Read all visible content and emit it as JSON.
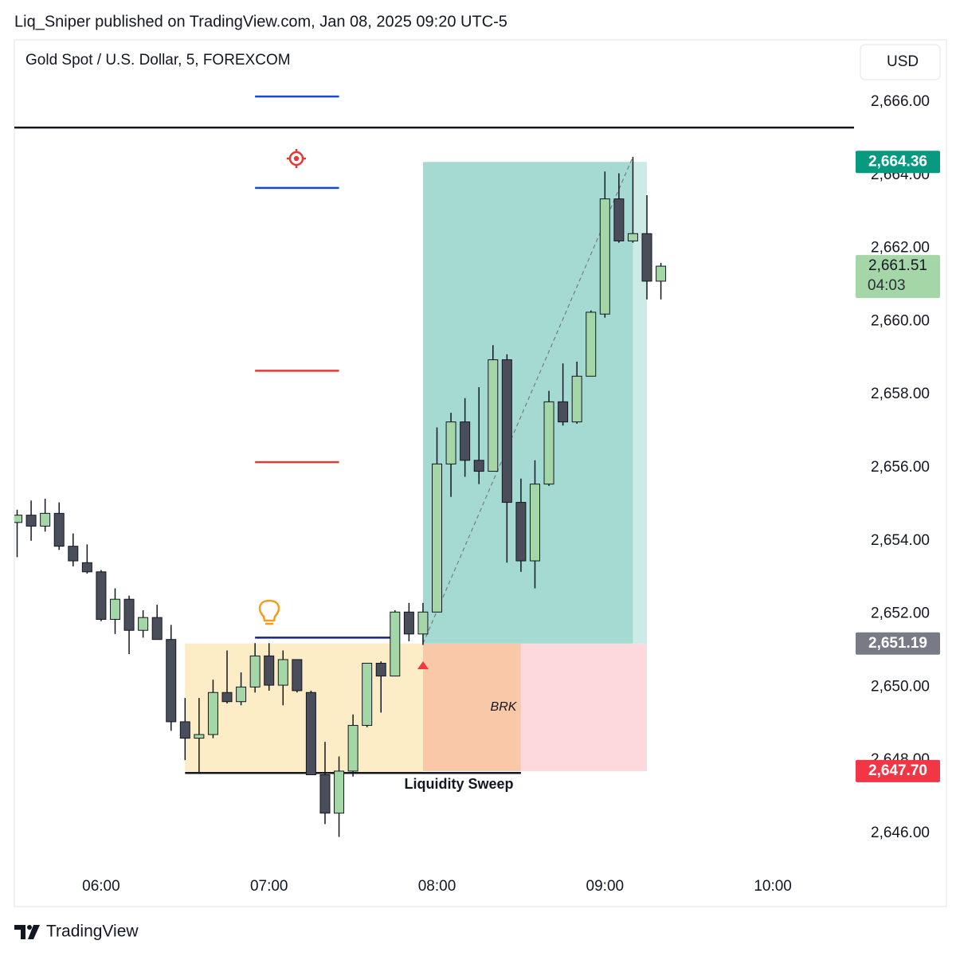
{
  "header": {
    "publisher": "Liq_Sniper published on TradingView.com, Jan 08, 2025 09:20 UTC-5",
    "logo": "TradingView"
  },
  "chart_data": {
    "type": "candlestick",
    "title": "Gold Spot / U.S. Dollar, 5, FOREXCOM",
    "currency": "USD",
    "x": [
      "05:30",
      "05:35",
      "05:40",
      "05:45",
      "05:50",
      "05:55",
      "06:00",
      "06:05",
      "06:10",
      "06:15",
      "06:20",
      "06:25",
      "06:30",
      "06:35",
      "06:40",
      "06:45",
      "06:50",
      "06:55",
      "07:00",
      "07:05",
      "07:10",
      "07:15",
      "07:20",
      "07:25",
      "07:30",
      "07:35",
      "07:40",
      "07:45",
      "07:50",
      "07:55",
      "08:00",
      "08:05",
      "08:10",
      "08:15",
      "08:20",
      "08:25",
      "08:30",
      "08:35",
      "08:40",
      "08:45",
      "08:50",
      "08:55",
      "09:00",
      "09:05",
      "09:10",
      "09:15",
      "09:20"
    ],
    "open": [
      2654.5,
      2654.7,
      2654.4,
      2654.75,
      2653.85,
      2653.4,
      2653.15,
      2651.85,
      2652.4,
      2651.55,
      2651.9,
      2651.3,
      2649.05,
      2648.6,
      2648.7,
      2649.85,
      2649.6,
      2650.0,
      2650.85,
      2650.05,
      2650.75,
      2649.85,
      2647.6,
      2646.55,
      2647.7,
      2648.95,
      2650.65,
      2650.3,
      2652.05,
      2651.45,
      2652.05,
      2656.1,
      2657.25,
      2656.2,
      2655.9,
      2658.95,
      2655.05,
      2653.45,
      2655.55,
      2657.8,
      2657.25,
      2658.5,
      2660.2,
      2663.35,
      2662.2,
      2662.4,
      2661.1
    ],
    "high": [
      2654.85,
      2655.1,
      2655.15,
      2655.05,
      2654.2,
      2653.9,
      2653.2,
      2652.7,
      2652.5,
      2652.1,
      2652.25,
      2651.7,
      2649.7,
      2649.7,
      2650.2,
      2651.0,
      2650.4,
      2651.2,
      2651.2,
      2651.0,
      2650.75,
      2649.9,
      2648.5,
      2648.1,
      2649.25,
      2650.65,
      2650.7,
      2652.1,
      2652.3,
      2652.3,
      2657.1,
      2657.5,
      2657.9,
      2658.2,
      2659.35,
      2659.1,
      2655.7,
      2656.2,
      2658.1,
      2658.85,
      2658.9,
      2660.3,
      2664.1,
      2664.05,
      2664.5,
      2663.45,
      2661.6
    ],
    "low": [
      2653.55,
      2654.0,
      2654.25,
      2653.75,
      2653.3,
      2653.1,
      2651.8,
      2651.45,
      2650.9,
      2651.35,
      2651.3,
      2648.8,
      2648.0,
      2647.65,
      2648.6,
      2649.55,
      2649.5,
      2649.85,
      2649.9,
      2649.5,
      2649.85,
      2647.6,
      2646.25,
      2645.9,
      2647.55,
      2648.9,
      2649.3,
      2650.3,
      2651.25,
      2651.15,
      2652.05,
      2655.2,
      2655.75,
      2655.55,
      2655.9,
      2653.4,
      2653.15,
      2652.7,
      2655.5,
      2657.15,
      2657.2,
      2658.5,
      2660.1,
      2662.15,
      2662.15,
      2660.6,
      2660.6
    ],
    "close": [
      2654.7,
      2654.4,
      2654.75,
      2653.85,
      2653.45,
      2653.15,
      2651.85,
      2652.4,
      2651.55,
      2651.9,
      2651.3,
      2649.05,
      2648.6,
      2648.7,
      2649.85,
      2649.6,
      2650.0,
      2650.85,
      2650.05,
      2650.75,
      2649.9,
      2647.6,
      2646.55,
      2647.7,
      2648.95,
      2650.65,
      2650.3,
      2652.05,
      2651.45,
      2652.05,
      2656.1,
      2657.25,
      2656.2,
      2655.9,
      2658.95,
      2655.05,
      2653.45,
      2655.55,
      2657.8,
      2657.25,
      2658.5,
      2660.25,
      2663.35,
      2662.2,
      2662.4,
      2661.1,
      2661.51
    ],
    "up_color": "#a5d6a7",
    "down_color": "#4a4e5a",
    "wick_color": "#131722",
    "xlim": [
      "05:29",
      "10:29"
    ],
    "xticks": [
      "06:00",
      "07:00",
      "08:00",
      "09:00",
      "10:00"
    ],
    "ylim": [
      2645.04,
      2667.7
    ],
    "yticks": [
      {
        "value": 2646,
        "label": "2,646.00"
      },
      {
        "value": 2648,
        "label": "2,648.00"
      },
      {
        "value": 2650,
        "label": "2,650.00"
      },
      {
        "value": 2652,
        "label": "2,652.00"
      },
      {
        "value": 2654,
        "label": "2,654.00"
      },
      {
        "value": 2656,
        "label": "2,656.00"
      },
      {
        "value": 2658,
        "label": "2,658.00"
      },
      {
        "value": 2660,
        "label": "2,660.00"
      },
      {
        "value": 2662,
        "label": "2,662.00"
      },
      {
        "value": 2664,
        "label": "2,664.00"
      },
      {
        "value": 2666,
        "label": "2,666.00"
      }
    ],
    "zones": [
      {
        "start": "06:30",
        "end": "07:55",
        "top": 2651.19,
        "bottom": 2647.65,
        "color": "#fcedc7"
      },
      {
        "start": "07:55",
        "end": "08:30",
        "top": 2651.19,
        "bottom": 2647.7,
        "color": "#f8c8a8"
      },
      {
        "start": "08:30",
        "end": "09:15",
        "top": 2651.19,
        "bottom": 2647.7,
        "color": "#fdd9de"
      },
      {
        "start": "07:55",
        "end": "09:10",
        "top": 2664.36,
        "bottom": 2651.19,
        "color": "#a5dad2"
      },
      {
        "start": "09:10",
        "end": "09:15",
        "top": 2664.36,
        "bottom": 2651.19,
        "color": "#cceae6"
      }
    ],
    "levels": [
      {
        "value": 2665.3,
        "start": "05:29",
        "end": "10:29",
        "color": "#131722"
      },
      {
        "value": 2666.15,
        "start": "06:55",
        "end": "07:25",
        "color": "#1848cc"
      },
      {
        "value": 2663.65,
        "start": "06:55",
        "end": "07:25",
        "color": "#1848cc"
      },
      {
        "value": 2658.65,
        "start": "06:55",
        "end": "07:25",
        "color": "#e53935"
      },
      {
        "value": 2656.15,
        "start": "06:55",
        "end": "07:25",
        "color": "#e53935"
      },
      {
        "value": 2651.35,
        "start": "06:55",
        "end": "07:45",
        "color": "#1a237e"
      },
      {
        "value": 2647.65,
        "start": "06:30",
        "end": "08:30",
        "color": "#131722"
      }
    ],
    "trend_line": {
      "start": "07:55",
      "start_value": 2651.19,
      "end": "09:10",
      "end_value": 2664.5,
      "color": "#787b86"
    },
    "annotations": [
      "BRK",
      "Liquidity Sweep"
    ],
    "price_labels": [
      {
        "value": 2664.36,
        "label": "2,664.36",
        "color": "#089981"
      },
      {
        "value": 2661.51,
        "label": "2,661.51",
        "countdown": "04:03",
        "color": "#a5d6a7"
      },
      {
        "value": 2651.19,
        "label": "2,651.19",
        "color": "#787b86"
      },
      {
        "value": 2647.7,
        "label": "2,647.70",
        "color": "#f23645"
      }
    ]
  }
}
